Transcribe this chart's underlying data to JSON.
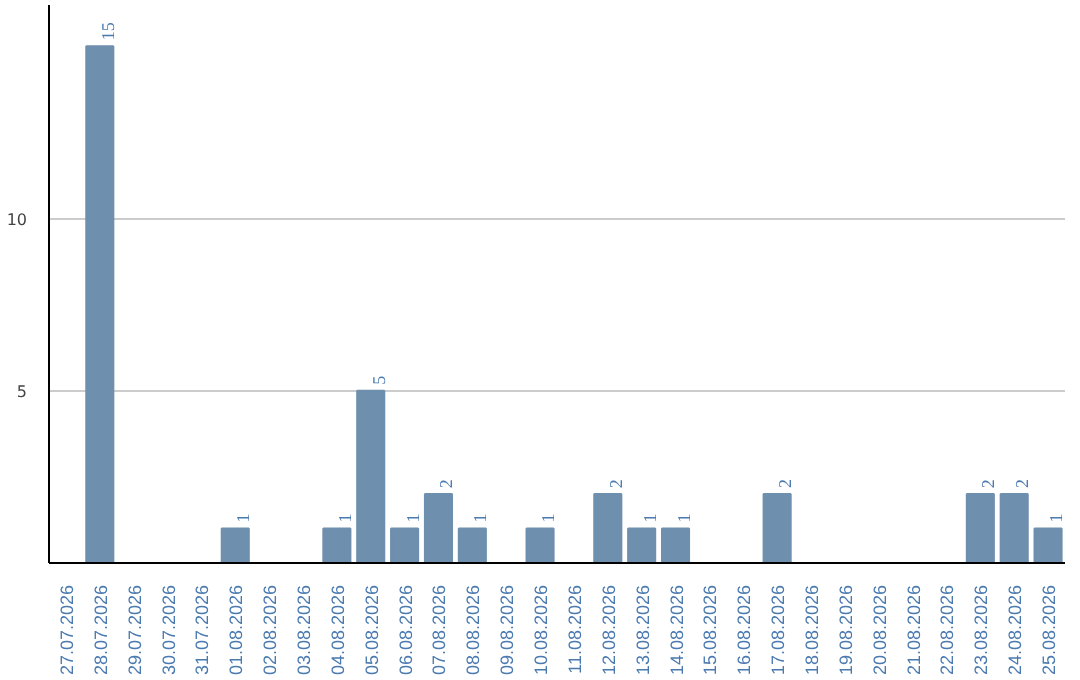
{
  "chart_data": {
    "type": "bar",
    "categories": [
      "27.07.2026",
      "28.07.2026",
      "29.07.2026",
      "30.07.2026",
      "31.07.2026",
      "01.08.2026",
      "02.08.2026",
      "03.08.2026",
      "04.08.2026",
      "05.08.2026",
      "06.08.2026",
      "07.08.2026",
      "08.08.2026",
      "09.08.2026",
      "10.08.2026",
      "11.08.2026",
      "12.08.2026",
      "13.08.2026",
      "14.08.2026",
      "15.08.2026",
      "16.08.2026",
      "17.08.2026",
      "18.08.2026",
      "19.08.2026",
      "20.08.2026",
      "21.08.2026",
      "22.08.2026",
      "23.08.2026",
      "24.08.2026",
      "25.08.2026"
    ],
    "values": [
      0,
      15,
      0,
      0,
      0,
      1,
      0,
      0,
      1,
      5,
      1,
      2,
      1,
      0,
      1,
      0,
      2,
      1,
      1,
      0,
      0,
      2,
      0,
      0,
      0,
      0,
      0,
      2,
      2,
      1
    ],
    "value_labels": [
      null,
      "15",
      null,
      null,
      null,
      "1",
      null,
      null,
      "1",
      "5",
      "1",
      "2",
      "1",
      null,
      "1",
      null,
      "2",
      "1",
      "1",
      null,
      null,
      "2",
      null,
      null,
      null,
      null,
      null,
      "2",
      "2",
      "1"
    ],
    "color": "#6f8fae",
    "ylim": [
      0,
      16.2
    ],
    "yticks": [
      5,
      10
    ],
    "grid": "y"
  }
}
